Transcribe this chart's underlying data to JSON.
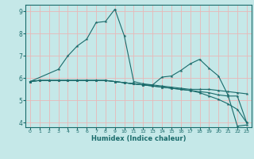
{
  "title": "",
  "xlabel": "Humidex (Indice chaleur)",
  "xlim": [
    -0.5,
    23.5
  ],
  "ylim": [
    3.8,
    9.3
  ],
  "yticks": [
    4,
    5,
    6,
    7,
    8,
    9
  ],
  "xticks": [
    0,
    1,
    2,
    3,
    4,
    5,
    6,
    7,
    8,
    9,
    10,
    11,
    12,
    13,
    14,
    15,
    16,
    17,
    18,
    19,
    20,
    21,
    22,
    23
  ],
  "bg_color": "#c5e8e8",
  "grid_color": "#e8b8b8",
  "line_color": "#1a6b6b",
  "lines": [
    {
      "x": [
        0,
        1,
        2,
        3,
        4,
        5,
        6,
        7,
        8,
        9,
        10,
        11,
        12,
        13,
        14,
        15,
        16,
        17,
        18,
        19,
        20,
        21,
        22,
        23
      ],
      "y": [
        5.85,
        5.9,
        5.9,
        5.9,
        5.9,
        5.9,
        5.9,
        5.9,
        5.9,
        5.85,
        5.8,
        5.75,
        5.7,
        5.7,
        5.65,
        5.6,
        5.55,
        5.5,
        5.5,
        5.5,
        5.45,
        5.4,
        5.35,
        5.3
      ]
    },
    {
      "x": [
        0,
        1,
        2,
        3,
        4,
        5,
        6,
        7,
        8,
        9,
        10,
        11,
        12,
        13,
        14,
        15,
        16,
        17,
        18,
        19,
        20,
        21,
        22,
        23
      ],
      "y": [
        5.85,
        5.9,
        5.9,
        5.9,
        5.9,
        5.9,
        5.9,
        5.9,
        5.9,
        5.85,
        5.8,
        5.75,
        5.7,
        5.65,
        5.6,
        5.55,
        5.5,
        5.45,
        5.35,
        5.2,
        5.05,
        4.85,
        4.6,
        4.0
      ]
    },
    {
      "x": [
        0,
        3,
        4,
        5,
        6,
        7,
        8,
        9,
        10,
        11,
        12,
        13,
        14,
        15,
        16,
        17,
        18,
        19,
        20,
        21,
        22,
        23
      ],
      "y": [
        5.85,
        6.4,
        7.0,
        7.45,
        7.75,
        8.5,
        8.55,
        9.1,
        7.9,
        5.85,
        5.75,
        5.7,
        6.05,
        6.1,
        6.35,
        6.65,
        6.85,
        6.45,
        6.1,
        5.25,
        3.85,
        3.9
      ]
    },
    {
      "x": [
        0,
        1,
        2,
        3,
        4,
        5,
        6,
        7,
        8,
        9,
        10,
        11,
        12,
        13,
        14,
        15,
        16,
        17,
        18,
        19,
        20,
        21,
        22,
        23
      ],
      "y": [
        5.85,
        5.9,
        5.9,
        5.9,
        5.9,
        5.9,
        5.9,
        5.9,
        5.9,
        5.85,
        5.8,
        5.75,
        5.7,
        5.65,
        5.6,
        5.55,
        5.5,
        5.45,
        5.4,
        5.35,
        5.25,
        5.2,
        5.2,
        4.0
      ]
    }
  ]
}
